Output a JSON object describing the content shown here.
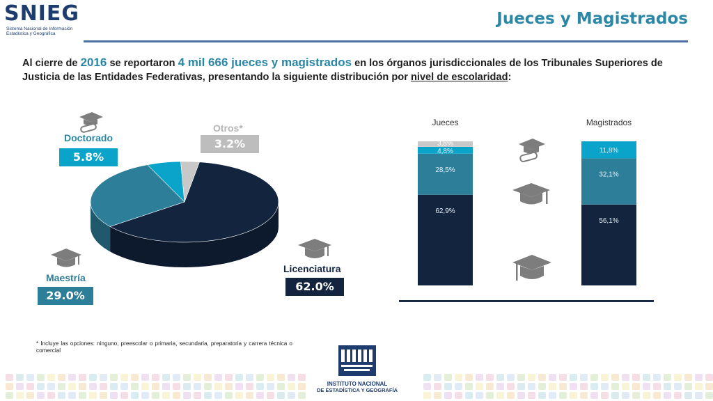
{
  "header": {
    "logo_text": "SNIEG",
    "logo_subtitle_1": "Sistema Nacional de Información",
    "logo_subtitle_2": "Estadística y Geográfica",
    "title": "Jueces y Magistrados"
  },
  "intro": {
    "p1": "Al cierre de ",
    "year": "2016",
    "p2": " se reportaron ",
    "count": "4 mil 666 jueces y magistrados",
    "p3": " en los órganos jurisdiccionales de los Tribunales Superiores de Justicia de las Entidades Federativas, presentando la siguiente distribución por ",
    "underlined": "nivel de escolaridad",
    "p4": ":"
  },
  "footnote": "* Incluye las opciones: ninguno, preescolar o primaria, secundaria, preparatoria y carrera técnica o comercial",
  "inegi": {
    "line1": "INSTITUTO NACIONAL",
    "line2": "DE ESTADÍSTICA Y GEOGRAFÍA",
    "logo_text": "INEGI"
  },
  "icons": [
    "graduation-cap-diploma-icon",
    "graduation-cap-icon"
  ],
  "colors": {
    "licenciatura": "#13243f",
    "maestria": "#2d7f99",
    "doctorado": "#0aa3c9",
    "otros": "#c8c8c8",
    "title": "#2a87a6"
  },
  "chart_data": [
    {
      "type": "pie",
      "slices": [
        {
          "label": "Licenciatura",
          "value": 62.0,
          "value_label": "62.0%"
        },
        {
          "label": "Maestría",
          "value": 29.0,
          "value_label": "29.0%"
        },
        {
          "label": "Doctorado",
          "value": 5.8,
          "value_label": "5.8%"
        },
        {
          "label": "Otros*",
          "value": 3.2,
          "value_label": "3.2%"
        }
      ]
    },
    {
      "type": "bar",
      "stacked": true,
      "categories": [
        "Jueces",
        "Magistrados"
      ],
      "series": [
        {
          "key": "licenciatura",
          "values": [
            62.9,
            56.1
          ],
          "labels": [
            "62,9%",
            "56,1%"
          ]
        },
        {
          "key": "maestria",
          "values": [
            28.5,
            32.1
          ],
          "labels": [
            "28,5%",
            "32,1%"
          ]
        },
        {
          "key": "doctorado",
          "values": [
            4.8,
            11.8
          ],
          "labels": [
            "4,8%",
            "11,8%"
          ]
        },
        {
          "key": "otros",
          "values": [
            3.8,
            0
          ],
          "labels": [
            "3,8%",
            ""
          ]
        }
      ],
      "ylim": [
        0,
        100
      ]
    }
  ]
}
